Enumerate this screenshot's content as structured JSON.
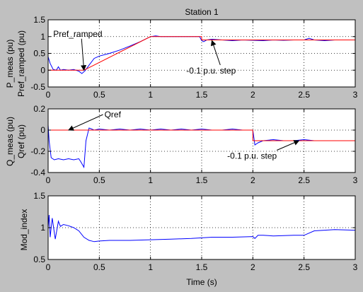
{
  "chart_data": [
    {
      "type": "line",
      "title": "Station 1",
      "ylabel": [
        "P_meas (pu)",
        "Pref_ramped (pu)"
      ],
      "xlabel": "",
      "xlim": [
        0,
        3
      ],
      "ylim": [
        -0.5,
        1.5
      ],
      "xticks": [
        0,
        0.5,
        1,
        1.5,
        2,
        2.5,
        3
      ],
      "xtick_labels": [
        "0",
        "0.5",
        "1",
        "1.5",
        "2",
        "2.5",
        "3"
      ],
      "yticks": [
        -0.5,
        0,
        0.5,
        1,
        1.5
      ],
      "ytick_labels": [
        "-0.5",
        "0",
        "0.5",
        "1",
        "1.5"
      ],
      "grid": true,
      "series": [
        {
          "color": "#0000ff",
          "x": [
            0,
            0.02,
            0.05,
            0.08,
            0.1,
            0.12,
            0.15,
            0.2,
            0.25,
            0.3,
            0.33,
            0.36,
            0.4,
            0.45,
            0.5,
            0.6,
            0.7,
            0.8,
            0.9,
            1.0,
            1.05,
            1.1,
            1.2,
            1.3,
            1.4,
            1.48,
            1.5,
            1.52,
            1.55,
            1.6,
            1.7,
            1.8,
            1.9,
            2.0,
            2.1,
            2.2,
            2.3,
            2.4,
            2.5,
            2.55,
            2.6,
            2.7,
            2.8,
            2.9,
            3.0
          ],
          "y": [
            0.4,
            0.2,
            0.02,
            0.0,
            0.1,
            0.0,
            0.02,
            0.0,
            0.02,
            -0.03,
            -0.1,
            -0.02,
            0.15,
            0.35,
            0.42,
            0.5,
            0.6,
            0.72,
            0.85,
            1.0,
            1.02,
            1.0,
            1.0,
            1.0,
            1.0,
            1.0,
            0.88,
            0.85,
            0.9,
            0.92,
            0.9,
            0.88,
            0.9,
            0.89,
            0.88,
            0.9,
            0.89,
            0.9,
            0.9,
            0.95,
            0.9,
            0.88,
            0.9,
            0.9,
            0.9
          ]
        },
        {
          "color": "#ff0000",
          "x": [
            0,
            0.35,
            1.0,
            1.5,
            1.5,
            3.0
          ],
          "y": [
            0,
            0,
            1.0,
            1.0,
            0.9,
            0.9
          ]
        }
      ],
      "annotations": [
        {
          "text": "Pref_ramped",
          "x": 0.05,
          "y": 1.0,
          "arrow_to": [
            0.35,
            0.0
          ]
        },
        {
          "text": "-0.1 p.u. step",
          "x": 1.35,
          "y": -0.1,
          "arrow_to": [
            1.6,
            0.88
          ]
        }
      ]
    },
    {
      "type": "line",
      "title": "",
      "ylabel": [
        "Q_meas (pu)",
        "Qref (pu)"
      ],
      "xlabel": "",
      "xlim": [
        0,
        3
      ],
      "ylim": [
        -0.4,
        0.2
      ],
      "xticks": [
        0,
        0.5,
        1,
        1.5,
        2,
        2.5,
        3
      ],
      "xtick_labels": [
        "0",
        "0.5",
        "1",
        "1.5",
        "2",
        "2.5",
        "3"
      ],
      "yticks": [
        -0.4,
        -0.2,
        0,
        0.2
      ],
      "ytick_labels": [
        "-0.4",
        "-0.2",
        "0",
        "0.2"
      ],
      "grid": true,
      "series": [
        {
          "color": "#0000ff",
          "x": [
            0,
            0.01,
            0.03,
            0.06,
            0.1,
            0.15,
            0.2,
            0.25,
            0.3,
            0.32,
            0.35,
            0.37,
            0.4,
            0.45,
            0.5,
            0.6,
            0.7,
            0.8,
            0.9,
            1.0,
            1.1,
            1.2,
            1.3,
            1.4,
            1.5,
            1.6,
            1.7,
            1.8,
            1.9,
            2.0,
            2.02,
            2.05,
            2.1,
            2.2,
            2.3,
            2.4,
            2.5,
            2.6,
            2.7,
            2.8,
            2.9,
            3.0
          ],
          "y": [
            0.05,
            -0.1,
            -0.26,
            -0.28,
            -0.27,
            -0.28,
            -0.27,
            -0.28,
            -0.27,
            -0.3,
            -0.35,
            -0.1,
            0.02,
            0.0,
            0.01,
            0.0,
            0.01,
            0.0,
            0.01,
            0.0,
            0.01,
            0.0,
            0.01,
            0.0,
            0.01,
            0.0,
            0.0,
            0.01,
            0.0,
            0.0,
            -0.14,
            -0.12,
            -0.1,
            -0.09,
            -0.1,
            -0.1,
            -0.09,
            -0.1,
            -0.1,
            -0.1,
            -0.1,
            -0.1
          ]
        },
        {
          "color": "#ff0000",
          "x": [
            0,
            2.0,
            2.0,
            3.0
          ],
          "y": [
            0,
            0,
            -0.1,
            -0.1
          ]
        }
      ],
      "annotations": [
        {
          "text": "Qref",
          "x": 0.55,
          "y": 0.12,
          "arrow_to": [
            0.2,
            0.0
          ]
        },
        {
          "text": "-0.1 p.u. step",
          "x": 1.75,
          "y": -0.27,
          "arrow_to": [
            2.45,
            -0.1
          ]
        }
      ]
    },
    {
      "type": "line",
      "title": "",
      "ylabel": [
        "Mod_index"
      ],
      "xlabel": "Time (s)",
      "xlim": [
        0,
        3
      ],
      "ylim": [
        0.5,
        1.5
      ],
      "xticks": [
        0,
        0.5,
        1,
        1.5,
        2,
        2.5,
        3
      ],
      "xtick_labels": [
        "0",
        "0.5",
        "1",
        "1.5",
        "2",
        "2.5",
        "3"
      ],
      "yticks": [
        0.5,
        1,
        1.5
      ],
      "ytick_labels": [
        "0.5",
        "1",
        "1.5"
      ],
      "grid": true,
      "series": [
        {
          "color": "#0000ff",
          "x": [
            0,
            0.01,
            0.02,
            0.04,
            0.07,
            0.1,
            0.12,
            0.15,
            0.2,
            0.25,
            0.3,
            0.35,
            0.4,
            0.45,
            0.5,
            0.6,
            0.8,
            1.0,
            1.2,
            1.4,
            1.5,
            1.6,
            1.8,
            2.0,
            2.02,
            2.05,
            2.1,
            2.2,
            2.4,
            2.5,
            2.6,
            2.8,
            3.0
          ],
          "y": [
            1.0,
            1.2,
            0.85,
            1.15,
            0.82,
            1.1,
            1.02,
            1.05,
            1.03,
            1.0,
            0.95,
            0.85,
            0.8,
            0.78,
            0.79,
            0.8,
            0.8,
            0.81,
            0.82,
            0.83,
            0.84,
            0.85,
            0.85,
            0.86,
            0.83,
            0.88,
            0.88,
            0.87,
            0.88,
            0.88,
            0.95,
            0.97,
            0.96
          ]
        }
      ],
      "annotations": []
    }
  ]
}
